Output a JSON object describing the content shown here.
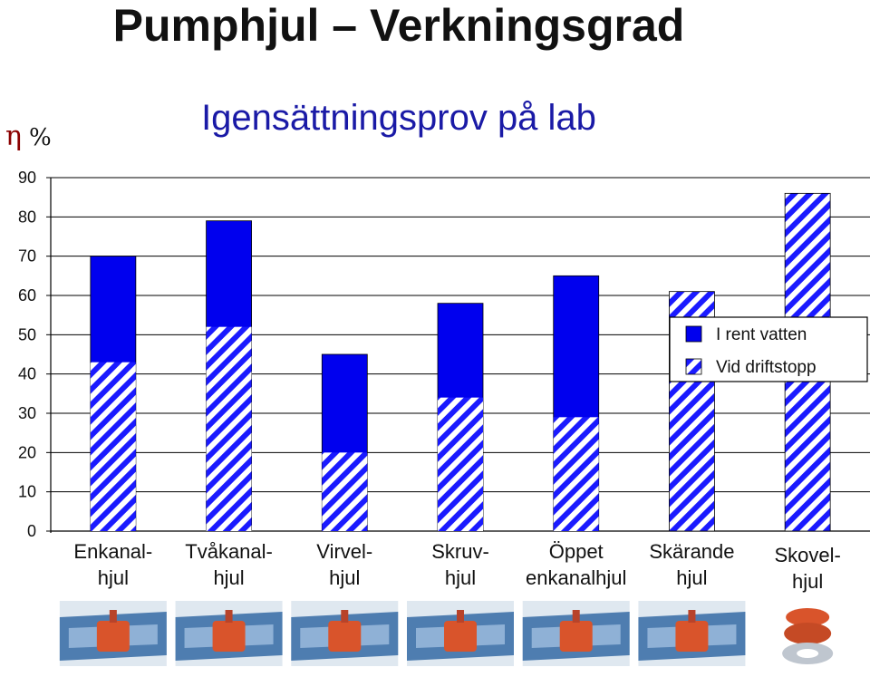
{
  "page": {
    "title": "Pumphjul – Verkningsgrad",
    "subtitle": "Igensättningsprov på lab",
    "eta_symbol": "η",
    "percent_symbol": "%"
  },
  "colors": {
    "solid": "#0000ee",
    "hatch": "#1a1aff",
    "hatch_bg": "#ffffff"
  },
  "chart_data": {
    "type": "bar",
    "ylabel": "η %",
    "ylim": [
      0,
      90
    ],
    "yticks": [
      0,
      10,
      20,
      30,
      40,
      50,
      60,
      70,
      80,
      90
    ],
    "categories": [
      [
        "Enkanal-",
        "hjul"
      ],
      [
        "Tvåkanal-",
        "hjul"
      ],
      [
        "Virvel-",
        "hjul"
      ],
      [
        "Skruv-",
        "hjul"
      ],
      [
        "Öppet",
        "enkanalhjul"
      ],
      [
        "Skärande",
        "hjul"
      ],
      [
        "Skovel-",
        "hjul"
      ]
    ],
    "series": [
      {
        "name": "I rent vatten",
        "values": [
          70,
          79,
          45,
          58,
          65,
          null,
          null
        ]
      },
      {
        "name": "Vid driftstopp",
        "values": [
          43,
          52,
          20,
          34,
          29,
          61,
          86
        ]
      }
    ],
    "legend_position": "right",
    "grid": true
  },
  "impeller_icons": [
    "enkanalhjul-impeller-icon",
    "tvakanalhjul-impeller-icon",
    "virvelhjul-impeller-icon",
    "skruvhjul-impeller-icon",
    "oppet-enkanalhjul-impeller-icon",
    "skarande-hjul-impeller-icon",
    "skovelhjul-impeller-icon"
  ]
}
